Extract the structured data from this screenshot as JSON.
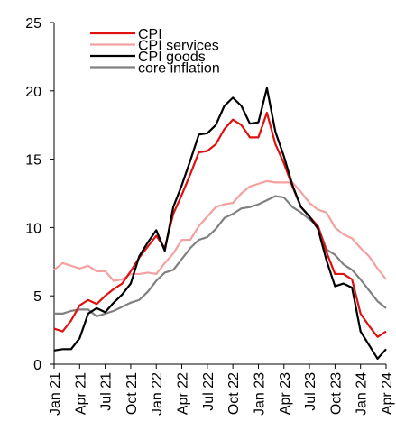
{
  "chart_data": {
    "type": "line",
    "categories": [
      "Jan 21",
      null,
      null,
      "Apr 21",
      null,
      null,
      "Jul 21",
      null,
      null,
      "Oct 21",
      null,
      null,
      "Jan 22",
      null,
      null,
      "Apr 22",
      null,
      null,
      "Jul 22",
      null,
      null,
      "Oct 22",
      null,
      null,
      "Jan 23",
      null,
      null,
      "Apr 23",
      null,
      null,
      "Jul 23",
      null,
      null,
      "Oct 23",
      null,
      null,
      "Jan 24",
      null,
      null,
      "Apr 24"
    ],
    "series": [
      {
        "name": "CPI",
        "color": "#e01010",
        "values": [
          2.6,
          2.4,
          3.2,
          4.3,
          4.7,
          4.4,
          5.0,
          5.5,
          5.9,
          6.8,
          7.8,
          8.6,
          9.4,
          8.5,
          11.0,
          12.4,
          13.9,
          15.5,
          15.6,
          16.1,
          17.2,
          17.9,
          17.5,
          16.6,
          16.6,
          18.4,
          16.1,
          14.7,
          13.0,
          11.5,
          10.8,
          10.1,
          8.2,
          6.6,
          6.6,
          6.2,
          3.7,
          2.8,
          2.0,
          2.4
        ]
      },
      {
        "name": "CPI services",
        "color": "#f4a0a0",
        "values": [
          6.9,
          7.4,
          7.2,
          7.0,
          7.2,
          6.8,
          6.8,
          6.1,
          6.2,
          6.6,
          6.6,
          6.7,
          6.6,
          7.4,
          8.1,
          9.1,
          9.1,
          10.1,
          10.8,
          11.5,
          11.7,
          11.8,
          12.5,
          13.0,
          13.2,
          13.4,
          13.3,
          13.3,
          13.3,
          12.6,
          11.8,
          11.3,
          11.1,
          10.0,
          9.5,
          9.2,
          8.5,
          7.9,
          7.0,
          6.2
        ]
      },
      {
        "name": "CPI goods",
        "color": "#000000",
        "values": [
          1.0,
          1.1,
          1.1,
          1.9,
          3.7,
          4.1,
          3.8,
          4.5,
          5.1,
          5.9,
          7.9,
          8.9,
          9.8,
          8.3,
          11.5,
          13.1,
          14.9,
          16.8,
          16.9,
          17.5,
          18.9,
          19.5,
          18.9,
          17.6,
          17.7,
          20.2,
          17.0,
          15.2,
          13.1,
          11.5,
          10.8,
          9.9,
          7.6,
          5.7,
          5.9,
          5.6,
          2.4,
          1.4,
          0.4,
          1.1
        ]
      },
      {
        "name": "core inflation",
        "color": "#808080",
        "values": [
          3.7,
          3.7,
          3.9,
          4.0,
          4.0,
          3.5,
          3.7,
          3.9,
          4.2,
          4.5,
          4.7,
          5.3,
          6.1,
          6.7,
          6.9,
          7.7,
          8.5,
          9.1,
          9.3,
          9.9,
          10.7,
          11.0,
          11.4,
          11.5,
          11.7,
          12.0,
          12.3,
          12.2,
          11.5,
          11.1,
          10.6,
          10.1,
          8.4,
          8.0,
          7.3,
          6.9,
          6.2,
          5.4,
          4.6,
          4.1
        ]
      }
    ],
    "ylim": [
      0,
      25
    ],
    "yticks": [
      0,
      5,
      10,
      15,
      20,
      25
    ],
    "grid": false,
    "legend": "top-left"
  }
}
